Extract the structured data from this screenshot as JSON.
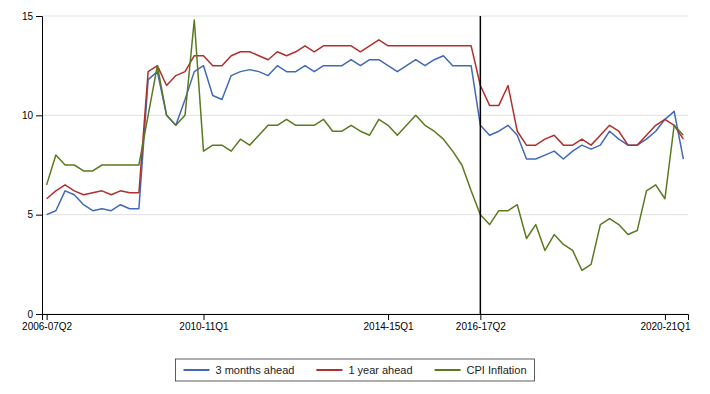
{
  "chart_data": {
    "type": "line",
    "categories": [
      "2006-07Q2",
      null,
      null,
      null,
      null,
      null,
      null,
      null,
      null,
      null,
      null,
      null,
      null,
      null,
      null,
      null,
      null,
      "2010-11Q1",
      null,
      null,
      null,
      null,
      null,
      null,
      null,
      null,
      null,
      null,
      null,
      null,
      null,
      null,
      null,
      null,
      null,
      null,
      null,
      "2014-15Q1",
      null,
      null,
      null,
      null,
      null,
      null,
      null,
      null,
      null,
      "2016-17Q2",
      null,
      null,
      null,
      null,
      null,
      null,
      null,
      null,
      null,
      null,
      null,
      null,
      null,
      null,
      null,
      null,
      null,
      null,
      null,
      "2020-21Q1",
      null,
      null
    ],
    "series": [
      {
        "name": "3 months ahead",
        "color": "#4169b8",
        "values": [
          5.0,
          5.2,
          6.2,
          6.0,
          5.5,
          5.2,
          5.3,
          5.2,
          5.5,
          5.3,
          5.3,
          11.8,
          12.2,
          10.0,
          9.5,
          10.8,
          12.2,
          12.5,
          11.0,
          10.8,
          12.0,
          12.2,
          12.3,
          12.2,
          12.0,
          12.5,
          12.2,
          12.2,
          12.5,
          12.2,
          12.5,
          12.5,
          12.5,
          12.8,
          12.5,
          12.8,
          12.8,
          12.5,
          12.2,
          12.5,
          12.8,
          12.5,
          12.8,
          13.0,
          12.5,
          12.5,
          12.5,
          9.5,
          9.0,
          9.2,
          9.5,
          9.0,
          7.8,
          7.8,
          8.0,
          8.2,
          7.8,
          8.2,
          8.5,
          8.3,
          8.5,
          9.2,
          8.8,
          8.5,
          8.5,
          8.8,
          9.2,
          9.8,
          10.2,
          7.8
        ]
      },
      {
        "name": "1 year ahead",
        "color": "#b03030",
        "values": [
          5.8,
          6.2,
          6.5,
          6.2,
          6.0,
          6.1,
          6.2,
          6.0,
          6.2,
          6.1,
          6.1,
          12.2,
          12.5,
          11.5,
          12.0,
          12.2,
          13.0,
          13.0,
          12.5,
          12.5,
          13.0,
          13.2,
          13.2,
          13.0,
          12.8,
          13.2,
          13.0,
          13.2,
          13.5,
          13.2,
          13.5,
          13.5,
          13.5,
          13.5,
          13.2,
          13.5,
          13.8,
          13.5,
          13.5,
          13.5,
          13.5,
          13.5,
          13.5,
          13.5,
          13.5,
          13.5,
          13.5,
          11.5,
          10.5,
          10.5,
          11.5,
          9.2,
          8.5,
          8.5,
          8.8,
          9.0,
          8.5,
          8.5,
          8.8,
          8.5,
          9.0,
          9.5,
          9.2,
          8.5,
          8.5,
          9.0,
          9.5,
          9.8,
          9.5,
          8.8
        ]
      },
      {
        "name": "CPI Inflation",
        "color": "#5a7a20",
        "values": [
          6.5,
          8.0,
          7.5,
          7.5,
          7.2,
          7.2,
          7.5,
          7.5,
          7.5,
          7.5,
          7.5,
          10.0,
          12.5,
          10.0,
          9.5,
          10.0,
          14.8,
          8.2,
          8.5,
          8.5,
          8.2,
          8.8,
          8.5,
          9.0,
          9.5,
          9.5,
          9.8,
          9.5,
          9.5,
          9.5,
          9.8,
          9.2,
          9.2,
          9.5,
          9.2,
          9.0,
          9.8,
          9.5,
          9.0,
          9.5,
          10.0,
          9.5,
          9.2,
          8.8,
          8.2,
          7.5,
          6.2,
          5.0,
          4.5,
          5.2,
          5.2,
          5.5,
          3.8,
          4.5,
          3.2,
          4.0,
          3.5,
          3.2,
          2.2,
          2.5,
          4.5,
          4.8,
          4.5,
          4.0,
          4.2,
          6.2,
          6.5,
          5.8,
          9.5,
          9.0
        ]
      }
    ],
    "vertical_line": "2016-17Q2",
    "ylim": [
      0,
      15
    ],
    "yticks": [
      0,
      5,
      10,
      15
    ],
    "grid": true,
    "legend": "bottom"
  }
}
